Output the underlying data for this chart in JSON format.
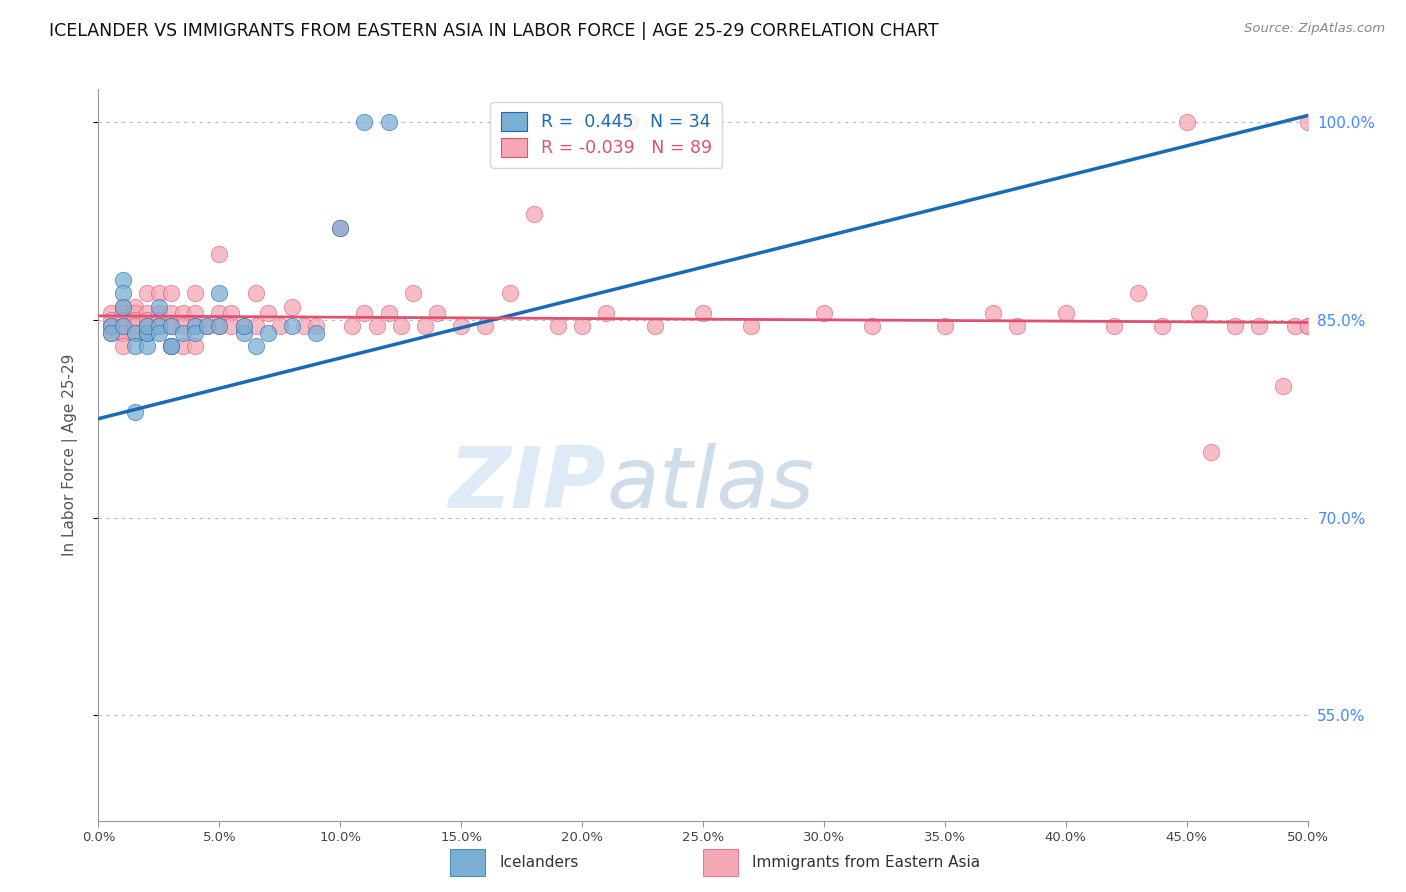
{
  "title": "ICELANDER VS IMMIGRANTS FROM EASTERN ASIA IN LABOR FORCE | AGE 25-29 CORRELATION CHART",
  "source": "Source: ZipAtlas.com",
  "ylabel": "In Labor Force | Age 25-29",
  "xmin": 0.0,
  "xmax": 0.5,
  "ymin": 0.47,
  "ymax": 1.025,
  "blue_R": 0.445,
  "blue_N": 34,
  "pink_R": -0.039,
  "pink_N": 89,
  "blue_color": "#7bafd4",
  "pink_color": "#f4a7b5",
  "blue_line_color": "#1a6bb5",
  "pink_line_color": "#e05070",
  "legend_label_blue": "Icelanders",
  "legend_label_pink": "Immigrants from Eastern Asia",
  "watermark_zip": "ZIP",
  "watermark_atlas": "atlas",
  "blue_x": [
    0.005,
    0.005,
    0.01,
    0.01,
    0.01,
    0.01,
    0.015,
    0.015,
    0.015,
    0.02,
    0.02,
    0.02,
    0.02,
    0.025,
    0.025,
    0.025,
    0.03,
    0.03,
    0.03,
    0.035,
    0.04,
    0.04,
    0.045,
    0.05,
    0.05,
    0.06,
    0.06,
    0.065,
    0.07,
    0.08,
    0.09,
    0.1,
    0.11,
    0.12
  ],
  "blue_y": [
    0.845,
    0.84,
    0.88,
    0.87,
    0.86,
    0.845,
    0.84,
    0.83,
    0.78,
    0.84,
    0.83,
    0.84,
    0.845,
    0.86,
    0.845,
    0.84,
    0.83,
    0.845,
    0.83,
    0.84,
    0.845,
    0.84,
    0.845,
    0.87,
    0.845,
    0.84,
    0.845,
    0.83,
    0.84,
    0.845,
    0.84,
    0.92,
    1.0,
    1.0
  ],
  "blue_line_x0": 0.0,
  "blue_line_y0": 0.775,
  "blue_line_x1": 0.5,
  "blue_line_y1": 1.005,
  "pink_line_x0": 0.0,
  "pink_line_y0": 0.853,
  "pink_line_x1": 0.5,
  "pink_line_y1": 0.848,
  "pink_x": [
    0.005,
    0.005,
    0.005,
    0.005,
    0.01,
    0.01,
    0.01,
    0.01,
    0.01,
    0.01,
    0.01,
    0.015,
    0.015,
    0.015,
    0.015,
    0.015,
    0.02,
    0.02,
    0.02,
    0.02,
    0.02,
    0.025,
    0.025,
    0.025,
    0.025,
    0.03,
    0.03,
    0.03,
    0.03,
    0.035,
    0.035,
    0.035,
    0.04,
    0.04,
    0.04,
    0.04,
    0.045,
    0.05,
    0.05,
    0.05,
    0.055,
    0.055,
    0.06,
    0.065,
    0.065,
    0.07,
    0.075,
    0.08,
    0.085,
    0.09,
    0.1,
    0.105,
    0.11,
    0.115,
    0.12,
    0.125,
    0.13,
    0.135,
    0.14,
    0.15,
    0.16,
    0.17,
    0.18,
    0.19,
    0.2,
    0.21,
    0.22,
    0.23,
    0.25,
    0.27,
    0.3,
    0.32,
    0.35,
    0.37,
    0.38,
    0.4,
    0.42,
    0.43,
    0.44,
    0.45,
    0.455,
    0.46,
    0.47,
    0.48,
    0.49,
    0.495,
    0.5,
    0.5,
    0.5
  ],
  "pink_y": [
    0.855,
    0.85,
    0.845,
    0.84,
    0.86,
    0.855,
    0.85,
    0.845,
    0.84,
    0.84,
    0.83,
    0.86,
    0.855,
    0.85,
    0.845,
    0.84,
    0.87,
    0.855,
    0.85,
    0.845,
    0.84,
    0.87,
    0.855,
    0.85,
    0.845,
    0.87,
    0.855,
    0.845,
    0.83,
    0.855,
    0.845,
    0.83,
    0.87,
    0.855,
    0.845,
    0.83,
    0.845,
    0.9,
    0.855,
    0.845,
    0.855,
    0.845,
    0.845,
    0.87,
    0.845,
    0.855,
    0.845,
    0.86,
    0.845,
    0.845,
    0.92,
    0.845,
    0.855,
    0.845,
    0.855,
    0.845,
    0.87,
    0.845,
    0.855,
    0.845,
    0.845,
    0.87,
    0.93,
    0.845,
    0.845,
    0.855,
    1.0,
    0.845,
    0.855,
    0.845,
    0.855,
    0.845,
    0.845,
    0.855,
    0.845,
    0.855,
    0.845,
    0.87,
    0.845,
    1.0,
    0.855,
    0.75,
    0.845,
    0.845,
    0.8,
    0.845,
    1.0,
    0.845,
    0.845
  ]
}
